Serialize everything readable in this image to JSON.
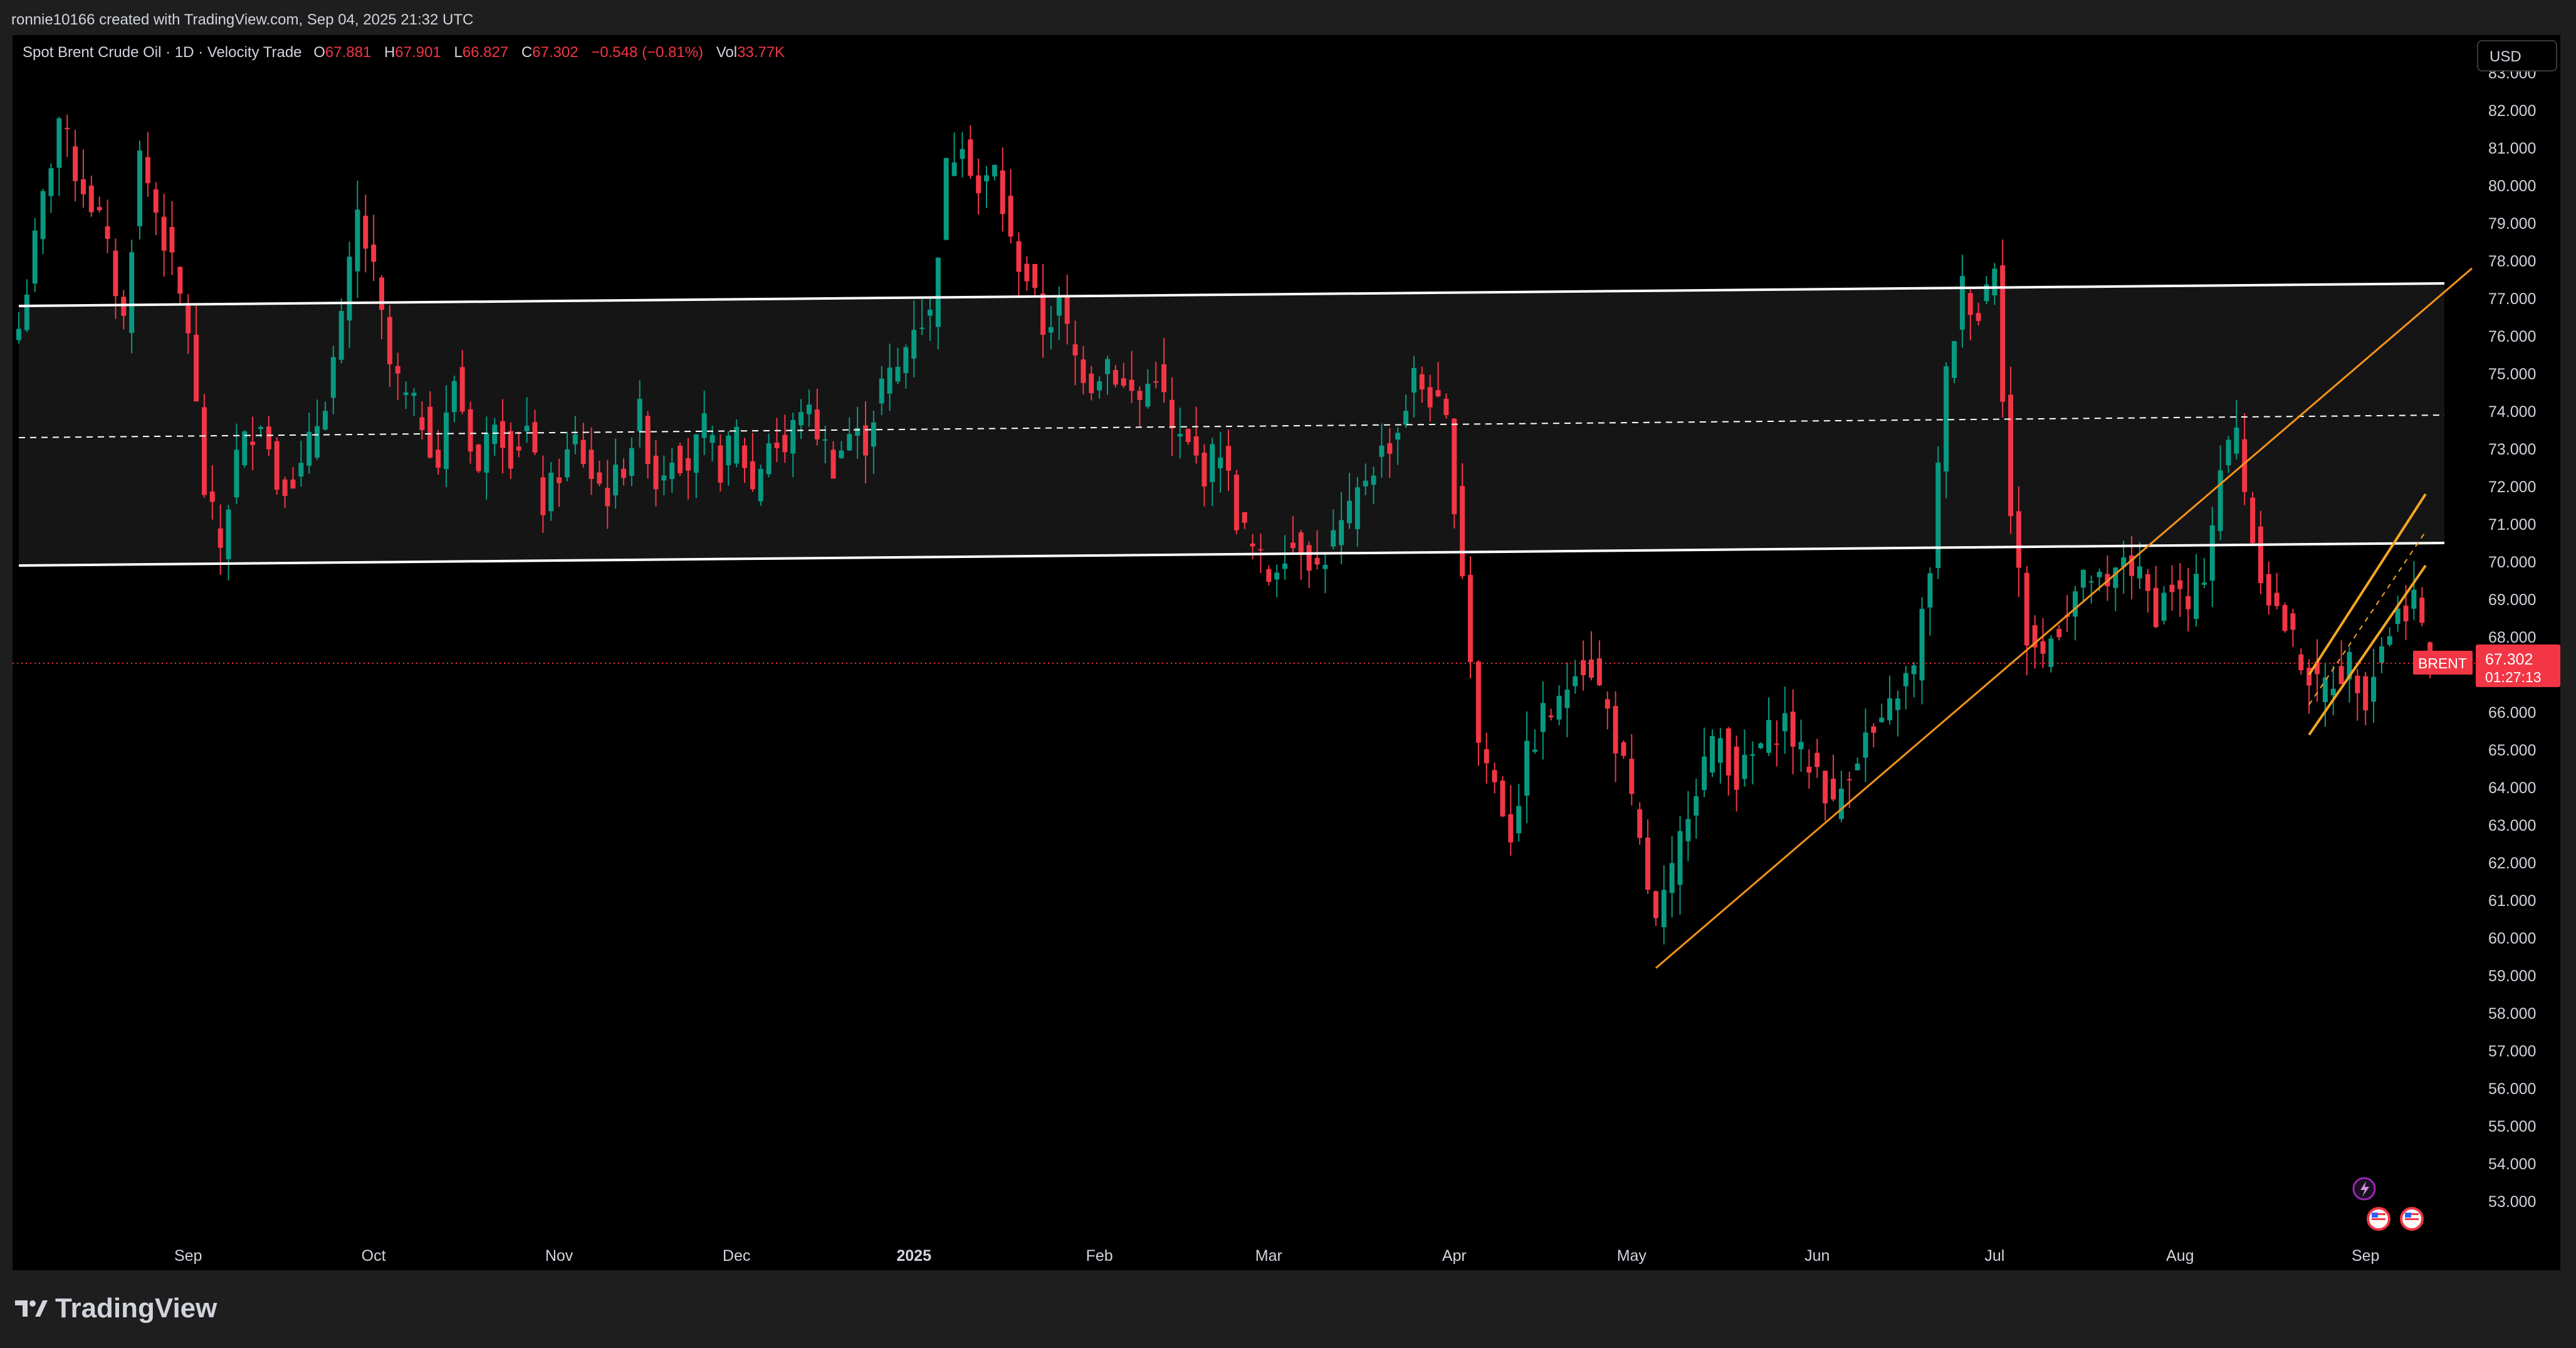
{
  "header": {
    "attribution": "ronnie10166 created with TradingView.com, Sep 04, 2025 21:32 UTC"
  },
  "legend": {
    "symbol": "Spot Brent Crude Oil · 1D · Velocity Trade",
    "o_label": "O",
    "o_value": "67.881",
    "h_label": "H",
    "h_value": "67.901",
    "l_label": "L",
    "l_value": "66.827",
    "c_label": "C",
    "c_value": "67.302",
    "change": "−0.548 (−0.81%)",
    "vol_label": "Vol",
    "vol_value": "33.77K"
  },
  "currency": "USD",
  "last_price": {
    "ticker": "BRENT",
    "price": "67.302",
    "countdown": "01:27:13",
    "value": 67.302
  },
  "footer": {
    "brand": "TradingView"
  },
  "colors": {
    "up": "#089981",
    "down": "#f23645",
    "background": "#000000",
    "axis_text": "#d1d4dc",
    "channel_lines": "#ffffff",
    "trendline": "#f7931a",
    "parallel_channel": "#f5a623"
  },
  "icons": [
    "lightning-icon",
    "us-flag-icon",
    "us-flag-icon"
  ],
  "chart_data": {
    "type": "candlestick",
    "title": "Spot Brent Crude Oil · 1D",
    "ylim": [
      52.5,
      83.0
    ],
    "y_ticks": [
      53,
      54,
      55,
      56,
      57,
      58,
      59,
      60,
      61,
      62,
      63,
      64,
      65,
      66,
      67,
      68,
      69,
      70,
      71,
      72,
      73,
      74,
      75,
      76,
      77,
      78,
      79,
      80,
      81,
      82,
      83
    ],
    "x_labels": [
      "Sep",
      "Oct",
      "Nov",
      "Dec",
      "2025",
      "Feb",
      "Mar",
      "Apr",
      "May",
      "Jun",
      "Jul",
      "Aug",
      "Sep"
    ],
    "x_label_positions": [
      21,
      44,
      67,
      89,
      111,
      134,
      155,
      178,
      200,
      223,
      245,
      268,
      291
    ],
    "n_days": 300,
    "series": [
      {
        "name": "Brent OHLC",
        "ohlc_anchor_closes": [
          [
            0,
            76.2
          ],
          [
            3,
            79.6
          ],
          [
            5,
            81.8
          ],
          [
            7,
            80.4
          ],
          [
            10,
            79.1
          ],
          [
            13,
            76.4
          ],
          [
            15,
            80.8
          ],
          [
            18,
            78.6
          ],
          [
            21,
            76.2
          ],
          [
            23,
            71.9
          ],
          [
            25,
            70.4
          ],
          [
            27,
            72.8
          ],
          [
            30,
            73.9
          ],
          [
            32,
            72.1
          ],
          [
            35,
            72.4
          ],
          [
            38,
            74.4
          ],
          [
            40,
            76.3
          ],
          [
            42,
            79.2
          ],
          [
            44,
            77.6
          ],
          [
            46,
            75.2
          ],
          [
            48,
            74.3
          ],
          [
            50,
            73.8
          ],
          [
            52,
            72.6
          ],
          [
            54,
            74.9
          ],
          [
            57,
            72.4
          ],
          [
            59,
            74.0
          ],
          [
            61,
            72.9
          ],
          [
            63,
            73.5
          ],
          [
            65,
            71.5
          ],
          [
            67,
            72.4
          ],
          [
            69,
            73.2
          ],
          [
            71,
            72.3
          ],
          [
            73,
            71.8
          ],
          [
            75,
            72.6
          ],
          [
            77,
            73.9
          ],
          [
            79,
            72.1
          ],
          [
            81,
            73.0
          ],
          [
            83,
            72.6
          ],
          [
            85,
            73.5
          ],
          [
            87,
            72.5
          ],
          [
            89,
            73.4
          ],
          [
            91,
            71.9
          ],
          [
            93,
            73.3
          ],
          [
            95,
            72.9
          ],
          [
            97,
            74.2
          ],
          [
            99,
            73.5
          ],
          [
            101,
            72.6
          ],
          [
            103,
            73.4
          ],
          [
            105,
            73.2
          ],
          [
            107,
            74.7
          ],
          [
            109,
            75.1
          ],
          [
            111,
            76.4
          ],
          [
            113,
            76.5
          ],
          [
            115,
            80.4
          ],
          [
            117,
            81.4
          ],
          [
            119,
            79.8
          ],
          [
            121,
            80.4
          ],
          [
            123,
            78.4
          ],
          [
            125,
            77.6
          ],
          [
            127,
            76.2
          ],
          [
            129,
            76.8
          ],
          [
            131,
            75.4
          ],
          [
            133,
            74.8
          ],
          [
            135,
            75.4
          ],
          [
            137,
            74.6
          ],
          [
            139,
            74.3
          ],
          [
            141,
            75.1
          ],
          [
            143,
            73.4
          ],
          [
            145,
            73.0
          ],
          [
            147,
            72.4
          ],
          [
            149,
            73.1
          ],
          [
            151,
            71.2
          ],
          [
            153,
            70.3
          ],
          [
            155,
            69.6
          ],
          [
            157,
            70.4
          ],
          [
            159,
            70.5
          ],
          [
            161,
            69.8
          ],
          [
            163,
            70.6
          ],
          [
            165,
            71.2
          ],
          [
            167,
            72.3
          ],
          [
            169,
            72.9
          ],
          [
            171,
            73.5
          ],
          [
            173,
            74.9
          ],
          [
            175,
            74.4
          ],
          [
            177,
            73.6
          ],
          [
            179,
            69.8
          ],
          [
            181,
            65.2
          ],
          [
            183,
            64.1
          ],
          [
            185,
            62.8
          ],
          [
            187,
            64.8
          ],
          [
            189,
            65.9
          ],
          [
            191,
            66.1
          ],
          [
            193,
            67.4
          ],
          [
            195,
            67.2
          ],
          [
            197,
            66.0
          ],
          [
            199,
            64.5
          ],
          [
            201,
            62.4
          ],
          [
            203,
            60.3
          ],
          [
            205,
            61.6
          ],
          [
            207,
            63.6
          ],
          [
            209,
            64.7
          ],
          [
            211,
            65.3
          ],
          [
            213,
            64.2
          ],
          [
            215,
            64.8
          ],
          [
            217,
            65.4
          ],
          [
            219,
            65.8
          ],
          [
            221,
            64.8
          ],
          [
            223,
            64.5
          ],
          [
            225,
            63.4
          ],
          [
            227,
            64.6
          ],
          [
            229,
            65.3
          ],
          [
            231,
            65.5
          ],
          [
            233,
            66.6
          ],
          [
            235,
            67.1
          ],
          [
            237,
            69.9
          ],
          [
            239,
            74.9
          ],
          [
            241,
            77.3
          ],
          [
            243,
            76.6
          ],
          [
            245,
            78.1
          ],
          [
            247,
            71.2
          ],
          [
            249,
            68.0
          ],
          [
            251,
            67.5
          ],
          [
            253,
            68.4
          ],
          [
            255,
            69.2
          ],
          [
            257,
            69.6
          ],
          [
            259,
            69.1
          ],
          [
            261,
            70.2
          ],
          [
            263,
            69.5
          ],
          [
            265,
            68.7
          ],
          [
            267,
            69.4
          ],
          [
            269,
            68.7
          ],
          [
            271,
            69.8
          ],
          [
            273,
            72.5
          ],
          [
            275,
            73.5
          ],
          [
            277,
            70.6
          ],
          [
            279,
            69.1
          ],
          [
            281,
            68.3
          ],
          [
            283,
            67.4
          ],
          [
            285,
            66.6
          ],
          [
            287,
            66.9
          ],
          [
            289,
            67.3
          ],
          [
            291,
            66.5
          ],
          [
            293,
            67.8
          ],
          [
            295,
            68.6
          ],
          [
            297,
            69.1
          ],
          [
            299,
            67.3
          ]
        ]
      }
    ],
    "annotations": {
      "range_box": {
        "top_line": [
          76.8,
          77.4
        ],
        "bottom_line": [
          69.9,
          70.5
        ],
        "mid_line": [
          73.3,
          73.9
        ]
      },
      "trendline": {
        "from_price": 59.2,
        "to_price": 77.8
      },
      "parallel_channel": {
        "upper": [
          67.0,
          71.8
        ],
        "lower": [
          65.4,
          69.9
        ],
        "mid": [
          66.2,
          70.8
        ]
      }
    }
  }
}
